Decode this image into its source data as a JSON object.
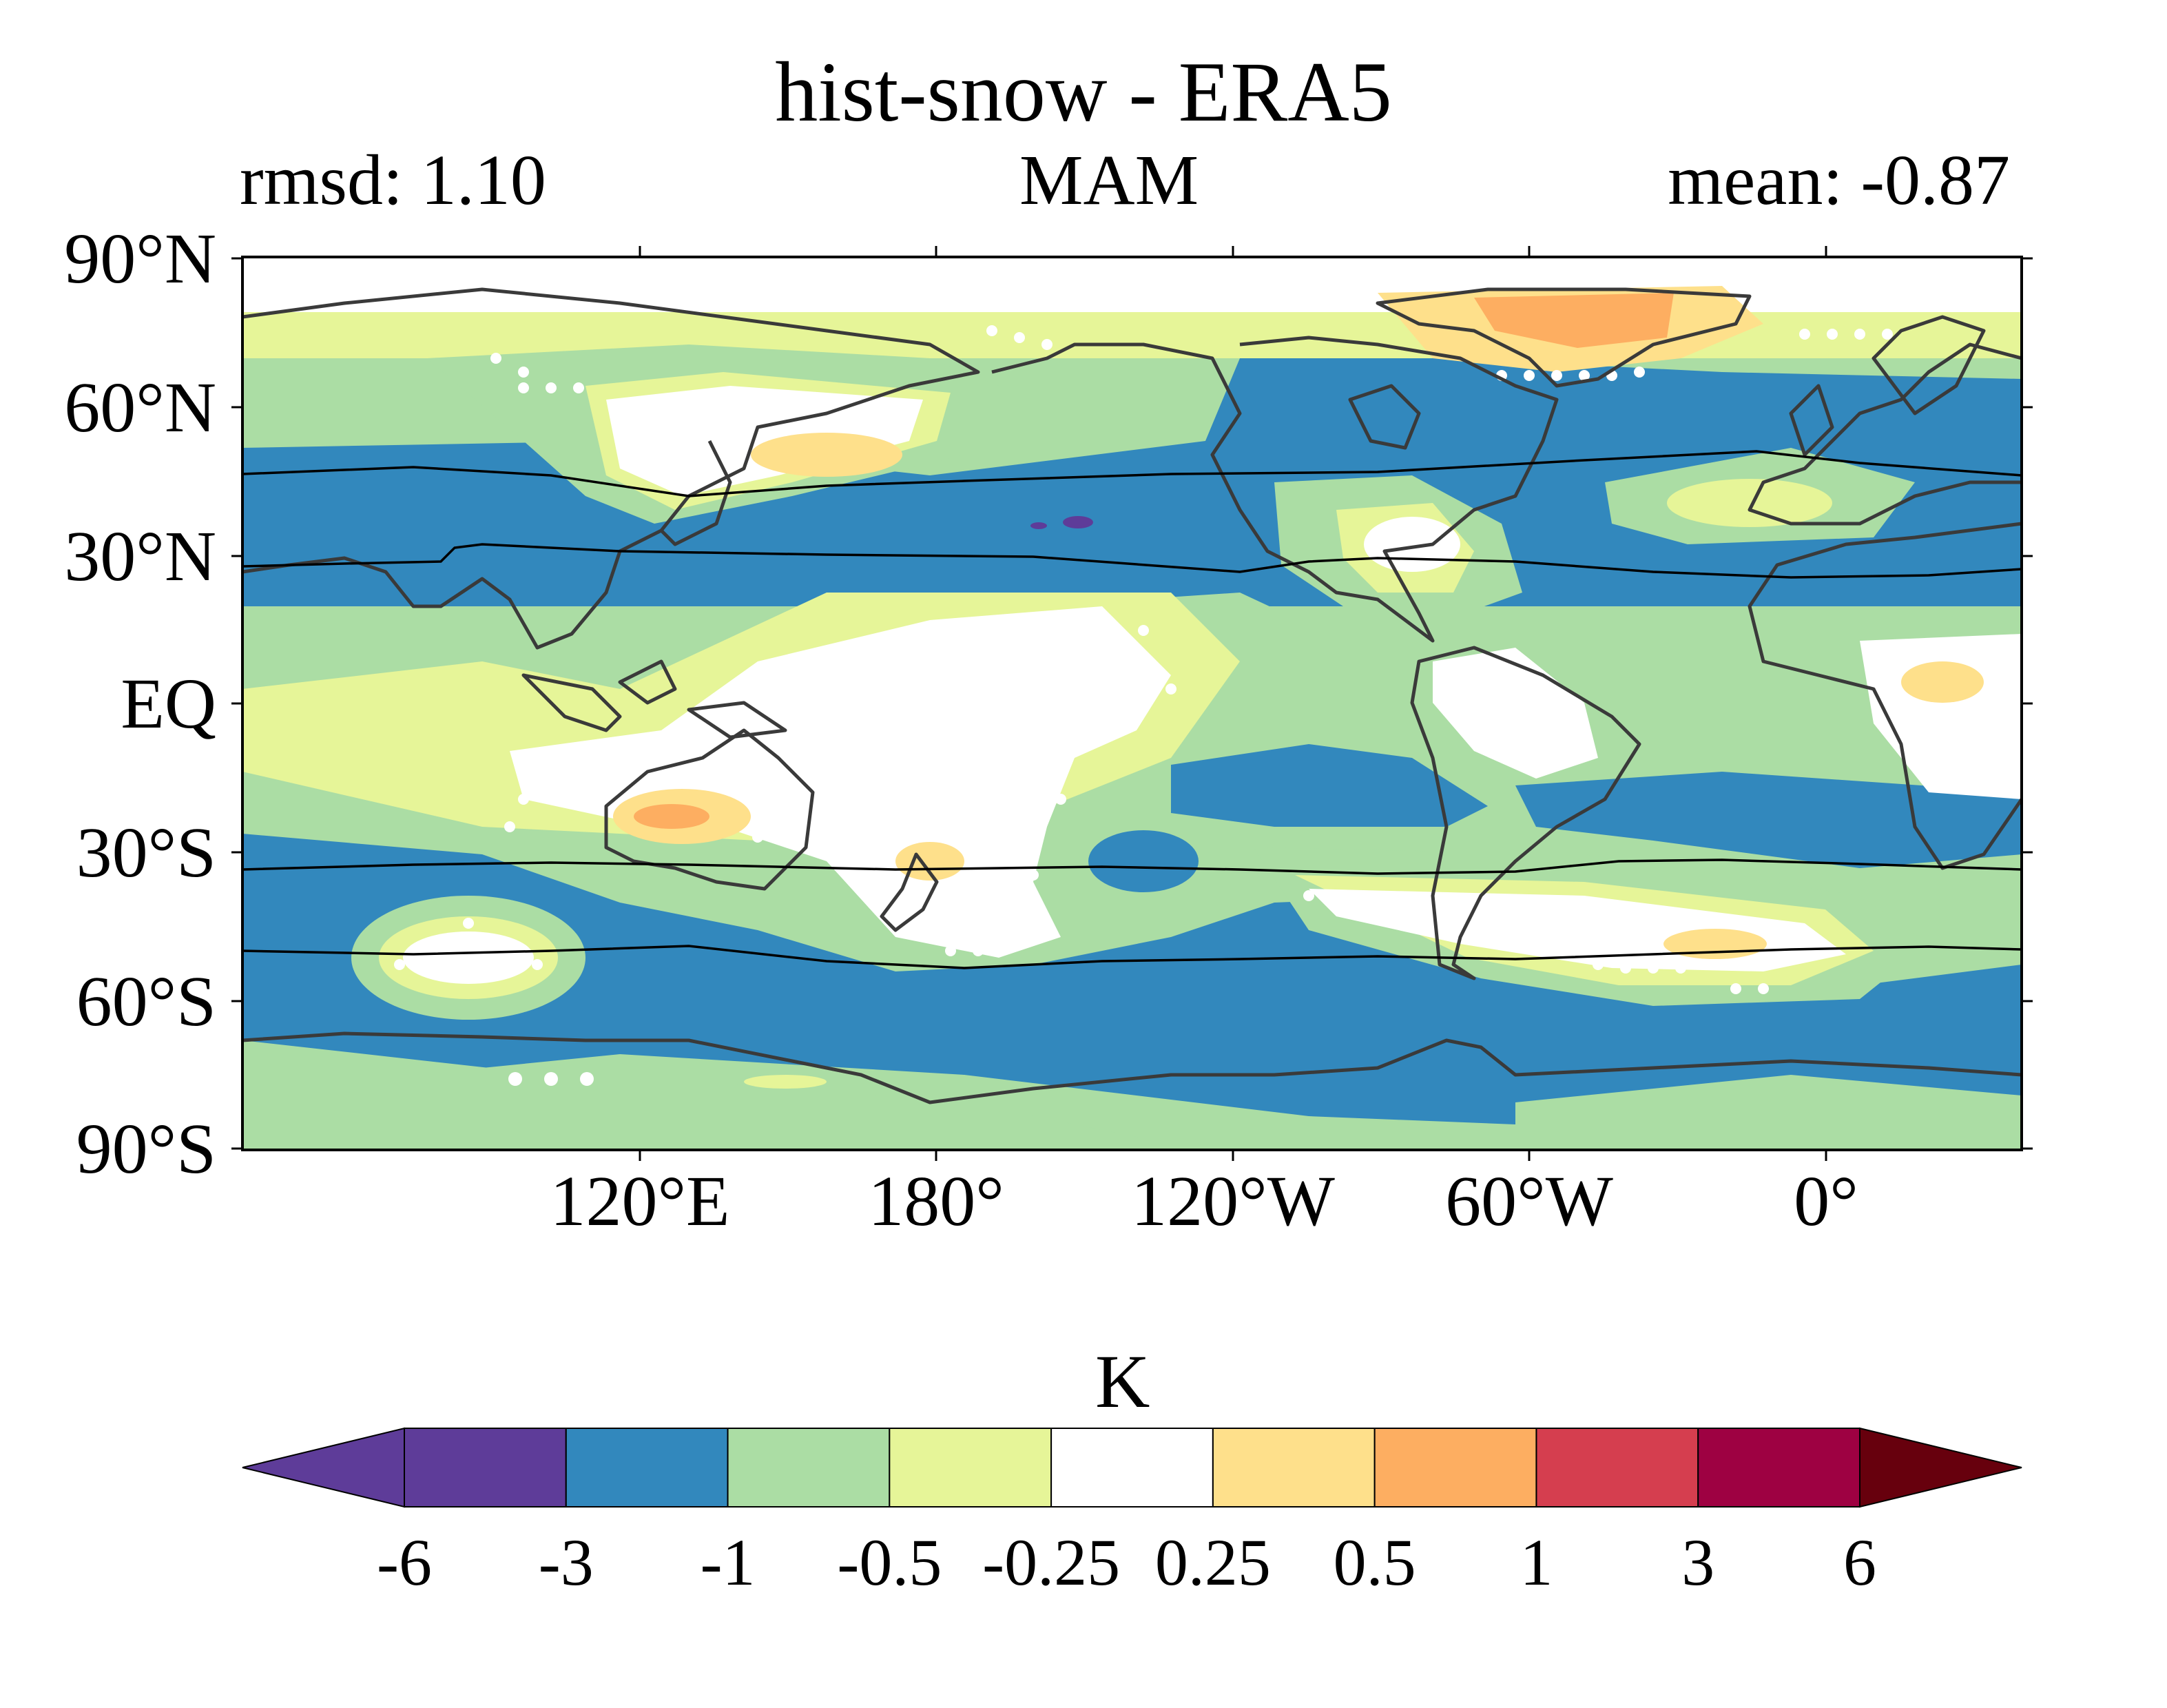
{
  "title": "hist-snow - ERA5",
  "subtitle_left": "rmsd: 1.10",
  "subtitle_center": "MAM",
  "subtitle_right": "mean: -0.87",
  "lat_labels": [
    "90°N",
    "60°N",
    "30°N",
    "EQ",
    "30°S",
    "60°S",
    "90°S"
  ],
  "lon_labels": [
    "120°E",
    "180°",
    "120°W",
    "60°W",
    "0°"
  ],
  "colorbar": {
    "units": "K",
    "tick_labels": [
      "-6",
      "-3",
      "-1",
      "-0.5",
      "-0.25",
      "0.25",
      "0.5",
      "1",
      "3",
      "6"
    ],
    "colors": [
      "#5e3c99",
      "#3288bd",
      "#abdda4",
      "#e6f598",
      "#ffffff",
      "#fee08b",
      "#fdae61",
      "#d53e4f",
      "#9e0142"
    ],
    "extend_low_color": "#5e3c99",
    "extend_high_color": "#67000d"
  },
  "map": {
    "projection": "PlateCarree centered 160°E",
    "colors": {
      "strong_neg": "#3288bd",
      "mod_neg": "#abdda4",
      "weak_neg": "#e6f598",
      "near_zero": "#ffffff",
      "weak_pos": "#fee08b",
      "mod_pos": "#fdae61",
      "extreme_neg": "#5e3c99"
    }
  }
}
